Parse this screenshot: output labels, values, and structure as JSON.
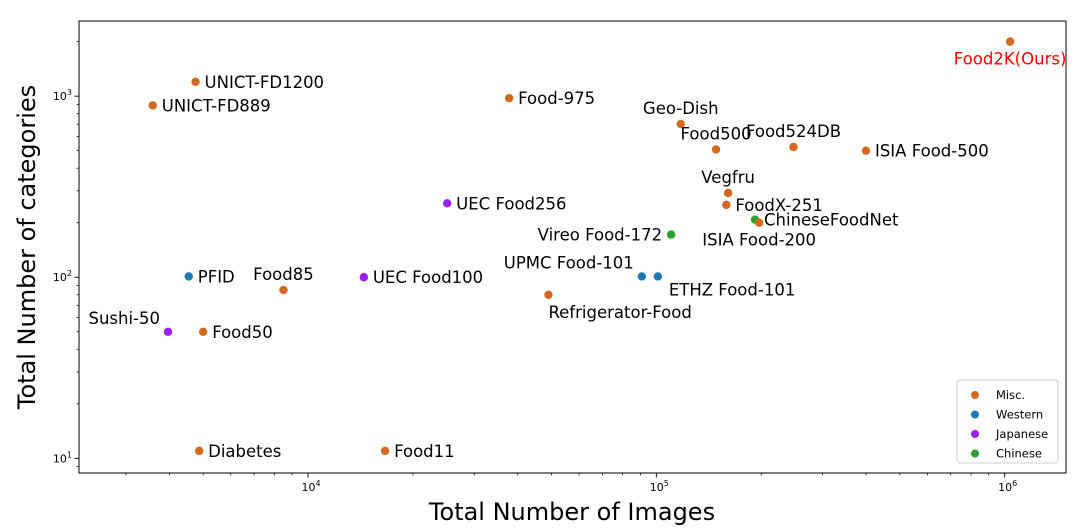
{
  "chart_data": {
    "type": "scatter",
    "xscale": "log",
    "yscale": "log",
    "xlabel": "Total Number of Images",
    "ylabel": "Total Number of categories",
    "xlim": [
      2200,
      1500000
    ],
    "ylim": [
      8.3,
      2600
    ],
    "x_ticks": [
      {
        "base": "10",
        "exp": "4",
        "value": 10000
      },
      {
        "base": "10",
        "exp": "5",
        "value": 100000
      },
      {
        "base": "10",
        "exp": "6",
        "value": 1000000
      }
    ],
    "y_ticks": [
      {
        "base": "10",
        "exp": "1",
        "value": 10
      },
      {
        "base": "10",
        "exp": "2",
        "value": 100
      },
      {
        "base": "10",
        "exp": "3",
        "value": 1000
      }
    ],
    "legend": {
      "position": "lower-right",
      "entries": [
        {
          "label": "Misc.",
          "color": "#d2691e"
        },
        {
          "label": "Western",
          "color": "#1f77b4"
        },
        {
          "label": "Japanese",
          "color": "#9b1ff0"
        },
        {
          "label": "Chinese",
          "color": "#2ca02c"
        }
      ]
    },
    "points": [
      {
        "name": "Food2K(Ours)",
        "x": 1036564,
        "y": 2000,
        "category": "Misc.",
        "label_color": "#ff0000",
        "anchor": "middle",
        "pos": "below"
      },
      {
        "name": "UNICT-FD1200",
        "x": 4754,
        "y": 1200,
        "category": "Misc.",
        "anchor": "start",
        "pos": "right"
      },
      {
        "name": "UNICT-FD889",
        "x": 3583,
        "y": 889,
        "category": "Misc.",
        "anchor": "start",
        "pos": "right"
      },
      {
        "name": "Food-975",
        "x": 37785,
        "y": 975,
        "category": "Misc.",
        "anchor": "start",
        "pos": "right"
      },
      {
        "name": "Geo-Dish",
        "x": 117504,
        "y": 701,
        "category": "Misc.",
        "anchor": "middle",
        "pos": "above"
      },
      {
        "name": "Food500",
        "x": 148408,
        "y": 508,
        "category": "Misc.",
        "anchor": "middle",
        "pos": "above"
      },
      {
        "name": "Food524DB",
        "x": 247636,
        "y": 524,
        "category": "Misc.",
        "anchor": "middle",
        "pos": "above"
      },
      {
        "name": "ISIA Food-500",
        "x": 399726,
        "y": 500,
        "category": "Misc.",
        "anchor": "start",
        "pos": "right"
      },
      {
        "name": "Vegfru",
        "x": 160731,
        "y": 292,
        "category": "Misc.",
        "anchor": "middle",
        "pos": "above"
      },
      {
        "name": "FoodX-251",
        "x": 158846,
        "y": 251,
        "category": "Misc.",
        "anchor": "start",
        "pos": "right"
      },
      {
        "name": "UEC Food256",
        "x": 25088,
        "y": 256,
        "category": "Japanese",
        "anchor": "start",
        "pos": "right"
      },
      {
        "name": "ChineseFoodNet",
        "x": 192000,
        "y": 208,
        "category": "Chinese",
        "anchor": "start",
        "pos": "right"
      },
      {
        "name": "ISIA Food-200",
        "x": 197323,
        "y": 200,
        "category": "Misc.",
        "anchor": "middle",
        "pos": "below"
      },
      {
        "name": "Vireo Food-172",
        "x": 110241,
        "y": 172,
        "category": "Chinese",
        "anchor": "end",
        "pos": "left"
      },
      {
        "name": "UPMC Food-101",
        "x": 90840,
        "y": 101,
        "category": "Western",
        "anchor": "end",
        "pos": "above-left"
      },
      {
        "name": "ETHZ Food-101",
        "x": 101000,
        "y": 101,
        "category": "Western",
        "anchor": "start",
        "pos": "below-right"
      },
      {
        "name": "PFID",
        "x": 4545,
        "y": 101,
        "category": "Western",
        "anchor": "start",
        "pos": "right"
      },
      {
        "name": "Food85",
        "x": 8500,
        "y": 85,
        "category": "Misc.",
        "anchor": "middle",
        "pos": "above"
      },
      {
        "name": "UEC Food100",
        "x": 14461,
        "y": 100,
        "category": "Japanese",
        "anchor": "start",
        "pos": "right"
      },
      {
        "name": "Refrigerator-Food",
        "x": 49000,
        "y": 80,
        "category": "Misc.",
        "anchor": "start",
        "pos": "below"
      },
      {
        "name": "Sushi-50",
        "x": 3963,
        "y": 50,
        "category": "Japanese",
        "anchor": "end",
        "pos": "above-left"
      },
      {
        "name": "Food50",
        "x": 5000,
        "y": 50,
        "category": "Misc.",
        "anchor": "start",
        "pos": "right"
      },
      {
        "name": "Diabetes",
        "x": 4868,
        "y": 11,
        "category": "Misc.",
        "anchor": "start",
        "pos": "right"
      },
      {
        "name": "Food11",
        "x": 16643,
        "y": 11,
        "category": "Misc.",
        "anchor": "start",
        "pos": "right"
      }
    ]
  }
}
